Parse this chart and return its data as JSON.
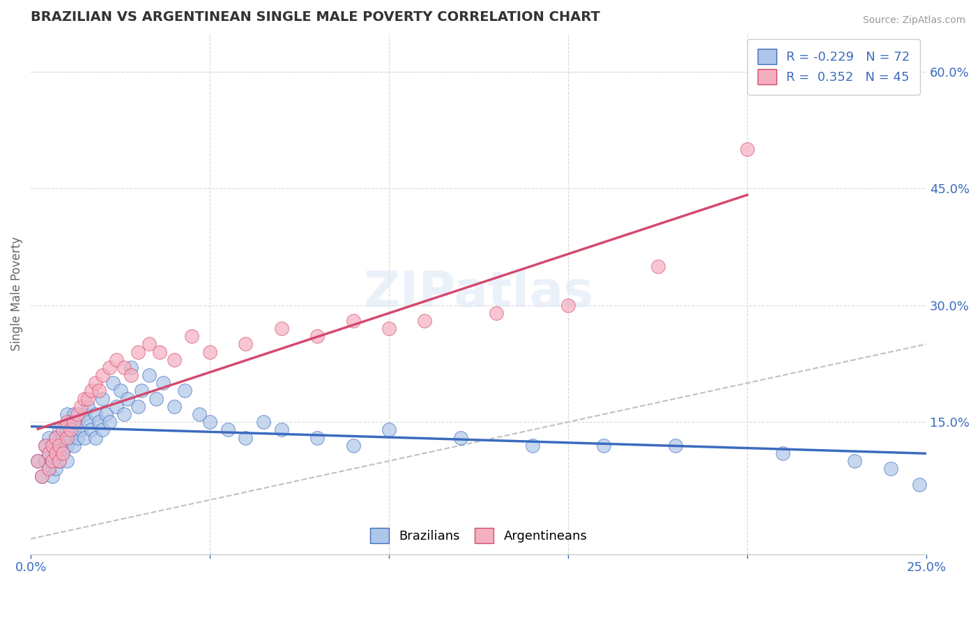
{
  "title": "BRAZILIAN VS ARGENTINEAN SINGLE MALE POVERTY CORRELATION CHART",
  "source": "Source: ZipAtlas.com",
  "ylabel": "Single Male Poverty",
  "right_yticks": [
    "15.0%",
    "30.0%",
    "45.0%",
    "60.0%"
  ],
  "right_ytick_vals": [
    0.15,
    0.3,
    0.45,
    0.6
  ],
  "xlim": [
    0.0,
    0.25
  ],
  "ylim": [
    -0.02,
    0.65
  ],
  "brazil_R": -0.229,
  "brazil_N": 72,
  "arg_R": 0.352,
  "arg_N": 45,
  "brazil_color": "#aec6e8",
  "arg_color": "#f4afc0",
  "brazil_line_color": "#3a6bbf",
  "arg_line_color": "#d4496e",
  "ref_line_color": "#c0c0c0",
  "legend_text_color": "#3a6bbf",
  "title_color": "#333333",
  "grid_color": "#d8d8d8",
  "background_color": "#ffffff",
  "brazil_x": [
    0.002,
    0.003,
    0.004,
    0.004,
    0.005,
    0.005,
    0.005,
    0.006,
    0.006,
    0.006,
    0.007,
    0.007,
    0.007,
    0.008,
    0.008,
    0.008,
    0.009,
    0.009,
    0.01,
    0.01,
    0.01,
    0.01,
    0.011,
    0.011,
    0.012,
    0.012,
    0.012,
    0.013,
    0.013,
    0.014,
    0.015,
    0.015,
    0.016,
    0.016,
    0.017,
    0.018,
    0.018,
    0.019,
    0.02,
    0.02,
    0.021,
    0.022,
    0.023,
    0.024,
    0.025,
    0.026,
    0.027,
    0.028,
    0.03,
    0.031,
    0.033,
    0.035,
    0.037,
    0.04,
    0.043,
    0.047,
    0.05,
    0.055,
    0.06,
    0.065,
    0.07,
    0.08,
    0.09,
    0.1,
    0.12,
    0.14,
    0.16,
    0.18,
    0.21,
    0.23,
    0.24,
    0.248
  ],
  "brazil_y": [
    0.1,
    0.08,
    0.12,
    0.1,
    0.09,
    0.11,
    0.13,
    0.1,
    0.08,
    0.12,
    0.09,
    0.11,
    0.13,
    0.1,
    0.12,
    0.14,
    0.11,
    0.13,
    0.12,
    0.14,
    0.16,
    0.1,
    0.13,
    0.15,
    0.12,
    0.14,
    0.16,
    0.13,
    0.15,
    0.14,
    0.16,
    0.13,
    0.15,
    0.17,
    0.14,
    0.13,
    0.16,
    0.15,
    0.18,
    0.14,
    0.16,
    0.15,
    0.2,
    0.17,
    0.19,
    0.16,
    0.18,
    0.22,
    0.17,
    0.19,
    0.21,
    0.18,
    0.2,
    0.17,
    0.19,
    0.16,
    0.15,
    0.14,
    0.13,
    0.15,
    0.14,
    0.13,
    0.12,
    0.14,
    0.13,
    0.12,
    0.12,
    0.12,
    0.11,
    0.1,
    0.09,
    0.07
  ],
  "arg_x": [
    0.002,
    0.003,
    0.004,
    0.005,
    0.005,
    0.006,
    0.006,
    0.007,
    0.007,
    0.008,
    0.008,
    0.009,
    0.009,
    0.01,
    0.01,
    0.011,
    0.012,
    0.013,
    0.014,
    0.015,
    0.016,
    0.017,
    0.018,
    0.019,
    0.02,
    0.022,
    0.024,
    0.026,
    0.028,
    0.03,
    0.033,
    0.036,
    0.04,
    0.045,
    0.05,
    0.06,
    0.07,
    0.08,
    0.09,
    0.1,
    0.11,
    0.13,
    0.15,
    0.175,
    0.2
  ],
  "arg_y": [
    0.1,
    0.08,
    0.12,
    0.09,
    0.11,
    0.1,
    0.12,
    0.11,
    0.13,
    0.1,
    0.12,
    0.11,
    0.14,
    0.13,
    0.15,
    0.14,
    0.15,
    0.16,
    0.17,
    0.18,
    0.18,
    0.19,
    0.2,
    0.19,
    0.21,
    0.22,
    0.23,
    0.22,
    0.21,
    0.24,
    0.25,
    0.24,
    0.23,
    0.26,
    0.24,
    0.25,
    0.27,
    0.26,
    0.28,
    0.27,
    0.28,
    0.29,
    0.3,
    0.35,
    0.5
  ]
}
